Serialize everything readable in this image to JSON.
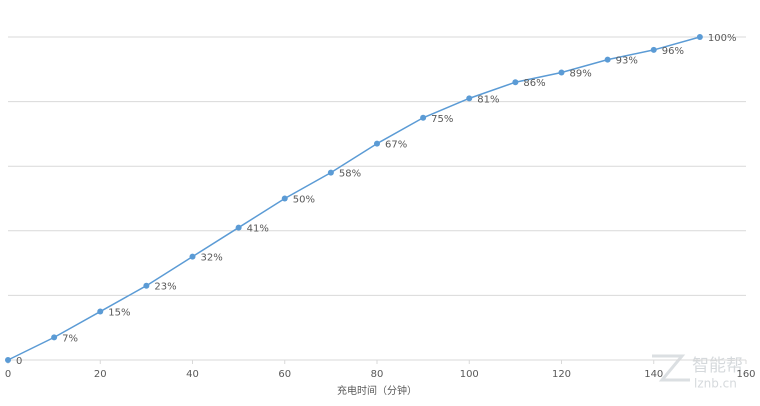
{
  "chart_data": {
    "type": "line",
    "x_label": "充电时间（分钟）",
    "x": [
      0,
      10,
      20,
      30,
      40,
      50,
      60,
      70,
      80,
      90,
      100,
      110,
      120,
      130,
      140,
      150
    ],
    "series": [
      {
        "color": "#5b9bd5",
        "values": [
          0,
          7,
          15,
          23,
          32,
          41,
          50,
          58,
          67,
          75,
          81,
          86,
          89,
          93,
          96,
          100
        ],
        "value_labels": [
          "0",
          "7%",
          "15%",
          "23%",
          "32%",
          "41%",
          "50%",
          "58%",
          "67%",
          "75%",
          "81%",
          "86%",
          "89%",
          "93%",
          "96%",
          "100%"
        ]
      }
    ],
    "xlim": [
      0,
      160
    ],
    "xticks": [
      0,
      20,
      40,
      60,
      80,
      100,
      120,
      140,
      160
    ],
    "ylim": [
      0,
      100
    ],
    "yticks": [
      0,
      20,
      40,
      60,
      80,
      100
    ],
    "grid": true
  },
  "watermark": {
    "name": "智能帮",
    "site": "lznb.cn"
  }
}
